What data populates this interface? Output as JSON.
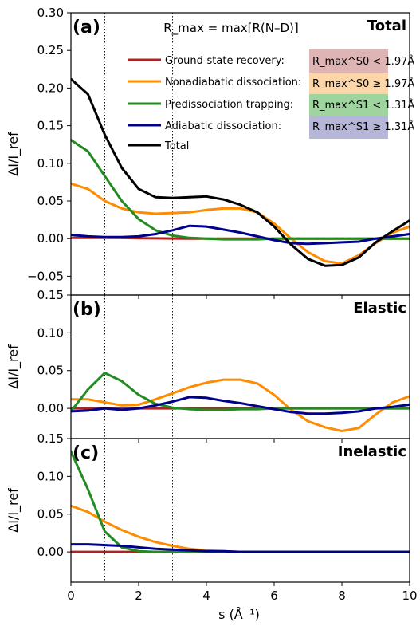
{
  "colors": {
    "ground_state_recovery": "#b22222",
    "nonadiabatic_dissociation": "#ff8c00",
    "predissociation_trapping": "#228b22",
    "adiabatic_dissociation": "#00008b",
    "total": "#000000",
    "box_ground_state_recovery": "#dfb4b4",
    "box_nonadiabatic_dissociation": "#fcd6a8",
    "box_predissociation_trapping": "#9fd49f",
    "box_adiabatic_dissociation": "#b6b6d8"
  },
  "header_formula": "R_max = max[R(N–D)]",
  "xlabel": "s (Å⁻¹)",
  "ylabel": "ΔI/I_ref",
  "legend": [
    {
      "label": "Ground-state recovery:",
      "criterion": "R_max^S0 < 1.97Å"
    },
    {
      "label": "Nonadiabatic dissociation:",
      "criterion": "R_max^S0 ≥ 1.97Å"
    },
    {
      "label": "Predissociation trapping:",
      "criterion": "R_max^S1 < 1.31Å"
    },
    {
      "label": "Adiabatic dissociation:",
      "criterion": "R_max^S1 ≥ 1.31Å"
    },
    {
      "label": "Total",
      "criterion": ""
    }
  ],
  "reference_lines_x": [
    1,
    3
  ],
  "chart_data": [
    {
      "type": "line",
      "panel": "(a)",
      "title": "Total",
      "xlim": [
        0,
        10
      ],
      "ylim": [
        -0.075,
        0.3
      ],
      "xticks": [
        0,
        2,
        4,
        6,
        8,
        10
      ],
      "yticks": [
        -0.05,
        0.0,
        0.05,
        0.1,
        0.15,
        0.2,
        0.25,
        0.3
      ],
      "ytick_labels": [
        "−0.05",
        "0.00",
        "0.05",
        "0.10",
        "0.15",
        "0.20",
        "0.25",
        "0.30"
      ],
      "x": [
        0.0,
        0.5,
        1.0,
        1.5,
        2.0,
        2.5,
        3.0,
        3.5,
        4.0,
        4.5,
        5.0,
        5.5,
        6.0,
        6.5,
        7.0,
        7.5,
        8.0,
        8.5,
        9.0,
        9.5,
        10.0
      ],
      "series": [
        {
          "name": "Ground-state recovery",
          "color_key": "ground_state_recovery",
          "values": [
            0.001,
            0.001,
            0.001,
            0.0008,
            0.0005,
            0.0003,
            0.0001,
            0.0,
            0.0,
            0.0,
            0.0,
            0.0,
            0.0,
            0.0,
            0.0,
            0.0,
            0.0,
            0.0,
            0.0,
            0.0,
            0.0
          ]
        },
        {
          "name": "Nonadiabatic dissociation",
          "color_key": "nonadiabatic_dissociation",
          "values": [
            0.073,
            0.066,
            0.05,
            0.04,
            0.035,
            0.033,
            0.034,
            0.035,
            0.038,
            0.04,
            0.04,
            0.035,
            0.02,
            0.0,
            -0.018,
            -0.03,
            -0.033,
            -0.022,
            -0.006,
            0.008,
            0.016
          ]
        },
        {
          "name": "Predissociation trapping",
          "color_key": "predissociation_trapping",
          "values": [
            0.131,
            0.116,
            0.083,
            0.05,
            0.026,
            0.011,
            0.004,
            0.001,
            0.0,
            -0.001,
            -0.001,
            -0.001,
            0.0,
            0.0,
            0.0,
            0.0,
            0.0,
            0.0,
            0.0,
            0.0,
            0.0
          ]
        },
        {
          "name": "Adiabatic dissociation",
          "color_key": "adiabatic_dissociation",
          "values": [
            0.005,
            0.003,
            0.002,
            0.002,
            0.003,
            0.006,
            0.011,
            0.017,
            0.016,
            0.012,
            0.008,
            0.003,
            -0.002,
            -0.006,
            -0.007,
            -0.006,
            -0.005,
            -0.004,
            0.0,
            0.003,
            0.006
          ]
        },
        {
          "name": "Total",
          "color_key": "total",
          "values": [
            0.212,
            0.192,
            0.138,
            0.094,
            0.066,
            0.055,
            0.054,
            0.055,
            0.056,
            0.052,
            0.045,
            0.035,
            0.016,
            -0.008,
            -0.027,
            -0.036,
            -0.035,
            -0.025,
            -0.005,
            0.01,
            0.024
          ]
        }
      ]
    },
    {
      "type": "line",
      "panel": "(b)",
      "title": "Elastic",
      "xlim": [
        0,
        10
      ],
      "ylim": [
        -0.04,
        0.15
      ],
      "xticks": [
        0,
        2,
        4,
        6,
        8,
        10
      ],
      "yticks": [
        0.0,
        0.05,
        0.1,
        0.15
      ],
      "ytick_labels": [
        "0.00",
        "0.05",
        "0.10",
        "0.15"
      ],
      "x": [
        0.0,
        0.5,
        1.0,
        1.5,
        2.0,
        2.5,
        3.0,
        3.5,
        4.0,
        4.5,
        5.0,
        5.5,
        6.0,
        6.5,
        7.0,
        7.5,
        8.0,
        8.5,
        9.0,
        9.5,
        10.0
      ],
      "series": [
        {
          "name": "Ground-state recovery",
          "color_key": "ground_state_recovery",
          "values": [
            0.0,
            0.0,
            0.0,
            0.0,
            0.0,
            0.0,
            0.0,
            0.0,
            0.0,
            0.0,
            0.0,
            0.0,
            0.0,
            0.0,
            0.0,
            0.0,
            0.0,
            0.0,
            0.0,
            0.0,
            0.0
          ]
        },
        {
          "name": "Nonadiabatic dissociation",
          "color_key": "nonadiabatic_dissociation",
          "values": [
            0.012,
            0.012,
            0.008,
            0.004,
            0.005,
            0.012,
            0.02,
            0.028,
            0.034,
            0.038,
            0.038,
            0.033,
            0.018,
            -0.002,
            -0.017,
            -0.025,
            -0.03,
            -0.026,
            -0.008,
            0.008,
            0.016
          ]
        },
        {
          "name": "Predissociation trapping",
          "color_key": "predissociation_trapping",
          "values": [
            -0.004,
            0.025,
            0.047,
            0.036,
            0.018,
            0.006,
            0.001,
            -0.001,
            -0.002,
            -0.002,
            -0.001,
            -0.001,
            0.0,
            0.0,
            0.0,
            0.0,
            0.0,
            0.0,
            0.0,
            0.0,
            0.0
          ]
        },
        {
          "name": "Adiabatic dissociation",
          "color_key": "adiabatic_dissociation",
          "values": [
            -0.004,
            -0.003,
            0.0,
            -0.002,
            0.0,
            0.004,
            0.009,
            0.015,
            0.014,
            0.01,
            0.007,
            0.003,
            -0.001,
            -0.005,
            -0.007,
            -0.007,
            -0.006,
            -0.004,
            0.0,
            0.002,
            0.005
          ]
        }
      ]
    },
    {
      "type": "line",
      "panel": "(c)",
      "title": "Inelastic",
      "xlim": [
        0,
        10
      ],
      "ylim": [
        -0.04,
        0.15
      ],
      "xticks": [
        0,
        2,
        4,
        6,
        8,
        10
      ],
      "xtick_labels": [
        "0",
        "2",
        "4",
        "6",
        "8",
        "10"
      ],
      "yticks": [
        0.0,
        0.05,
        0.1,
        0.15
      ],
      "ytick_labels": [
        "0.00",
        "0.05",
        "0.10",
        "0.15"
      ],
      "x": [
        0.0,
        0.5,
        1.0,
        1.5,
        2.0,
        2.5,
        3.0,
        3.5,
        4.0,
        4.5,
        5.0,
        5.5,
        6.0,
        6.5,
        7.0,
        7.5,
        8.0,
        8.5,
        9.0,
        9.5,
        10.0
      ],
      "series": [
        {
          "name": "Ground-state recovery",
          "color_key": "ground_state_recovery",
          "values": [
            0.0,
            0.0,
            0.0,
            0.0,
            0.0,
            0.0,
            0.0,
            0.0,
            0.0,
            0.0,
            0.0,
            0.0,
            0.0,
            0.0,
            0.0,
            0.0,
            0.0,
            0.0,
            0.0,
            0.0,
            0.0
          ]
        },
        {
          "name": "Nonadiabatic dissociation",
          "color_key": "nonadiabatic_dissociation",
          "values": [
            0.061,
            0.053,
            0.04,
            0.029,
            0.02,
            0.013,
            0.008,
            0.004,
            0.002,
            0.001,
            0.0,
            0.0,
            0.0,
            0.0,
            0.0,
            0.0,
            0.0,
            0.0,
            0.0,
            0.0,
            0.0
          ]
        },
        {
          "name": "Predissociation trapping",
          "color_key": "predissociation_trapping",
          "values": [
            0.133,
            0.083,
            0.027,
            0.006,
            0.001,
            0.0,
            0.0,
            0.0,
            0.0,
            0.0,
            0.0,
            0.0,
            0.0,
            0.0,
            0.0,
            0.0,
            0.0,
            0.0,
            0.0,
            0.0,
            0.0
          ]
        },
        {
          "name": "Adiabatic dissociation",
          "color_key": "adiabatic_dissociation",
          "values": [
            0.01,
            0.01,
            0.009,
            0.008,
            0.006,
            0.004,
            0.003,
            0.002,
            0.001,
            0.001,
            0.0,
            0.0,
            0.0,
            0.0,
            0.0,
            0.0,
            0.0,
            0.0,
            0.0,
            0.0,
            0.0
          ]
        }
      ]
    }
  ]
}
